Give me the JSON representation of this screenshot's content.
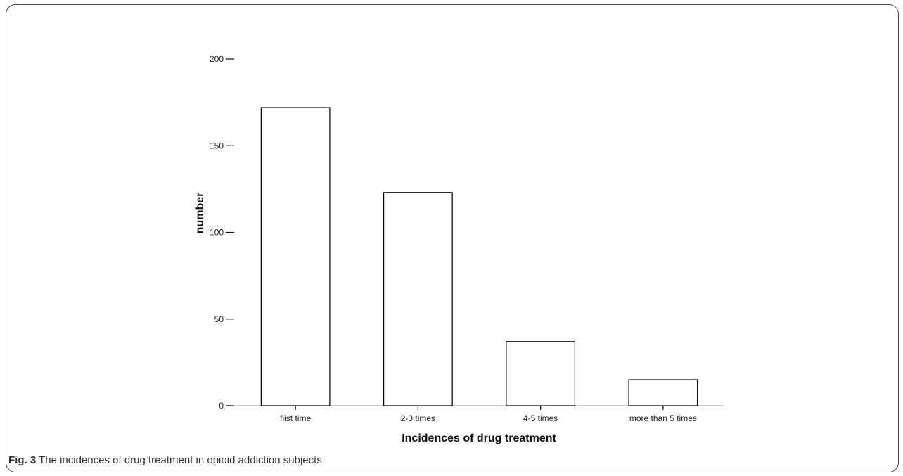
{
  "chart_data": {
    "type": "bar",
    "categories": [
      "fiist time",
      "2-3 times",
      "4-5 times",
      "more than 5 times"
    ],
    "values": [
      172,
      123,
      37,
      15
    ],
    "xlabel": "Incidences of drug treatment",
    "ylabel": "number",
    "ylim": [
      0,
      200
    ],
    "yticks": [
      0,
      50,
      100,
      150,
      200
    ],
    "grid": false,
    "bar_fill": "#ffffff",
    "bar_stroke": "#000000"
  },
  "caption": {
    "label": "Fig. 3",
    "text": "The incidences of drug treatment in opioid addiction subjects"
  }
}
